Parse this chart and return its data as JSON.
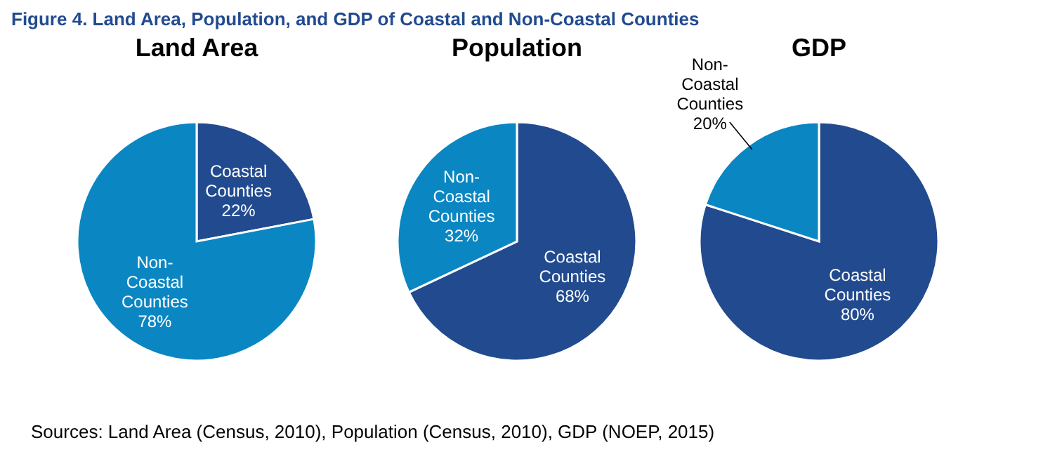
{
  "chart_data": [
    {
      "type": "other",
      "title": "Figure 4. Land Area, Population, and GDP of Coastal and Non-Coastal Counties",
      "annotations": [
        "Sources: Land Area (Census, 2010), Population (Census, 2010), GDP (NOEP, 2015)"
      ]
    },
    {
      "type": "pie",
      "title": "Land Area",
      "categories": [
        "Coastal Counties",
        "Non-Coastal Counties"
      ],
      "values": [
        22,
        78
      ],
      "colors": [
        "#224b8f",
        "#0a86c3"
      ],
      "value_labels": [
        "22%",
        "78%"
      ]
    },
    {
      "type": "pie",
      "title": "Population",
      "categories": [
        "Coastal Counties",
        "Non-Coastal Counties"
      ],
      "values": [
        68,
        32
      ],
      "colors": [
        "#224b8f",
        "#0a86c3"
      ],
      "value_labels": [
        "68%",
        "32%"
      ]
    },
    {
      "type": "pie",
      "title": "GDP",
      "categories": [
        "Coastal Counties",
        "Non-Coastal Counties"
      ],
      "values": [
        80,
        20
      ],
      "colors": [
        "#224b8f",
        "#0a86c3"
      ],
      "value_labels": [
        "80%",
        "20%"
      ]
    }
  ]
}
